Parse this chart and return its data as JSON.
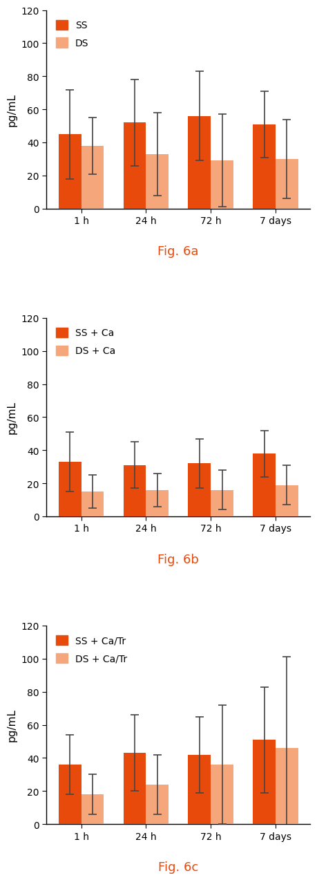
{
  "fig_a": {
    "title": "Fig. 6a",
    "legend_labels": [
      "SS",
      "DS"
    ],
    "categories": [
      "1 h",
      "24 h",
      "72 h",
      "7 days"
    ],
    "ss_values": [
      45,
      52,
      56,
      51
    ],
    "ds_values": [
      38,
      33,
      29,
      30
    ],
    "ss_errors": [
      27,
      26,
      27,
      20
    ],
    "ds_errors": [
      17,
      25,
      28,
      24
    ],
    "ss_color": "#E84A0C",
    "ds_color": "#F5A67A"
  },
  "fig_b": {
    "title": "Fig. 6b",
    "legend_labels": [
      "SS + Ca",
      "DS + Ca"
    ],
    "categories": [
      "1 h",
      "24 h",
      "72 h",
      "7 days"
    ],
    "ss_values": [
      33,
      31,
      32,
      38
    ],
    "ds_values": [
      15,
      16,
      16,
      19
    ],
    "ss_errors": [
      18,
      14,
      15,
      14
    ],
    "ds_errors": [
      10,
      10,
      12,
      12
    ],
    "ss_color": "#E84A0C",
    "ds_color": "#F5A67A"
  },
  "fig_c": {
    "title": "Fig. 6c",
    "legend_labels": [
      "SS + Ca/Tr",
      "DS + Ca/Tr"
    ],
    "categories": [
      "1 h",
      "24 h",
      "72 h",
      "7 days"
    ],
    "ss_values": [
      36,
      43,
      42,
      51
    ],
    "ds_values": [
      18,
      24,
      36,
      46
    ],
    "ss_errors": [
      18,
      23,
      23,
      32
    ],
    "ds_errors": [
      12,
      18,
      36,
      55
    ],
    "ss_color": "#E84A0C",
    "ds_color": "#F5A67A"
  },
  "ylabel": "pg/mL",
  "ylim": [
    0,
    120
  ],
  "yticks": [
    0,
    20,
    40,
    60,
    80,
    100,
    120
  ],
  "bar_width": 0.35,
  "title_color": "#E84A0C",
  "title_fontsize": 13,
  "axis_label_fontsize": 11,
  "tick_fontsize": 10,
  "legend_fontsize": 10,
  "background_color": "#ffffff",
  "error_capsize": 4,
  "error_linewidth": 1.2,
  "error_color": "#444444"
}
